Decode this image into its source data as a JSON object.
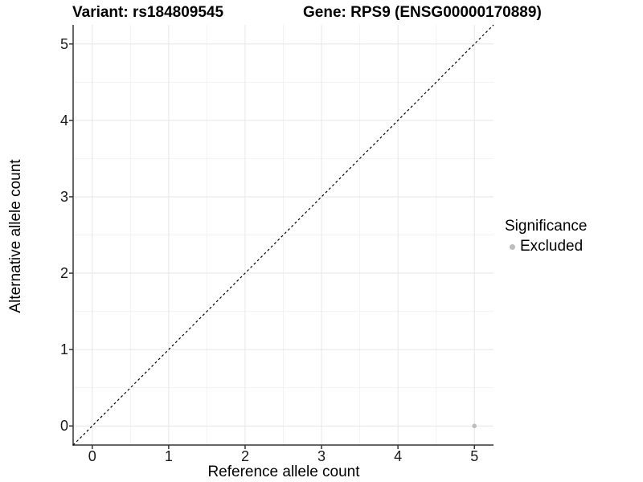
{
  "chart_data": {
    "type": "scatter",
    "title_variant": "Variant: rs184809545",
    "title_gene": "Gene: RPS9 (ENSG00000170889)",
    "xlabel": "Reference allele count",
    "ylabel": "Alternative allele count",
    "xlim": [
      -0.25,
      5.25
    ],
    "ylim": [
      -0.25,
      5.25
    ],
    "x_ticks": [
      0,
      1,
      2,
      3,
      4,
      5
    ],
    "y_ticks": [
      0,
      1,
      2,
      3,
      4,
      5
    ],
    "grid": "on",
    "series": [
      {
        "name": "Excluded",
        "color": "#bdbdbd",
        "points": [
          {
            "x": 5,
            "y": 0
          }
        ]
      }
    ],
    "reference_line": {
      "style": "dashed",
      "color": "#000000",
      "from": {
        "x": -0.25,
        "y": -0.25
      },
      "to": {
        "x": 5.25,
        "y": 5.25
      }
    },
    "legend": {
      "title": "Significance",
      "position": "right",
      "entries": [
        {
          "label": "Excluded",
          "color": "#bdbdbd"
        }
      ]
    },
    "colors": {
      "axis_line": "#333333",
      "tick_mark": "#333333",
      "grid_major": "#e6e6e6",
      "grid_minor": "#f2f2f2",
      "background": "#ffffff"
    }
  }
}
